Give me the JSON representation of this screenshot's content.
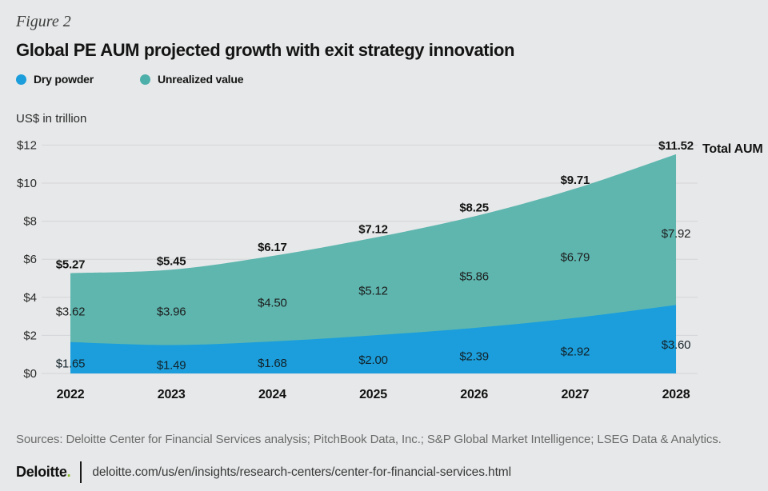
{
  "figure_label": "Figure 2",
  "title": "Global PE AUM projected growth with exit strategy innovation",
  "legend": [
    {
      "label": "Dry powder",
      "color": "#1b9edb"
    },
    {
      "label": "Unrealized value",
      "color": "#4dafa9"
    }
  ],
  "unit_label": "US$ in trillion",
  "total_aum_label": "Total AUM",
  "chart_data": {
    "type": "area",
    "stacked": true,
    "title": "Global PE AUM projected growth with exit strategy innovation",
    "x": [
      2022,
      2023,
      2024,
      2025,
      2026,
      2027,
      2028
    ],
    "series": [
      {
        "name": "Dry powder",
        "color": "#1b9edb",
        "values": [
          1.65,
          1.49,
          1.68,
          2.0,
          2.39,
          2.92,
          3.6
        ]
      },
      {
        "name": "Unrealized value",
        "color": "#5eb6af",
        "values": [
          3.62,
          3.96,
          4.5,
          5.12,
          5.86,
          6.79,
          7.92
        ]
      }
    ],
    "totals": [
      5.27,
      5.45,
      6.17,
      7.12,
      8.25,
      9.71,
      11.52
    ],
    "ylabel": "US$ in trillion",
    "ylim": [
      0,
      12
    ],
    "ytick_step": 2,
    "yticks": [
      "$0",
      "$2",
      "$4",
      "$6",
      "$8",
      "$10",
      "$12"
    ],
    "grid": true,
    "gridline_color": "#d4d5d7",
    "label_prefix": "$",
    "legend_position": "top-left"
  },
  "footer": {
    "sources": "Sources: Deloitte Center for Financial Services analysis; PitchBook Data, Inc.; S&P Global Market Intelligence; LSEG Data & Analytics.",
    "logo_text": "Deloitte",
    "logo_period": ".",
    "url": "deloitte.com/us/en/insights/research-centers/center-for-financial-services.html"
  }
}
